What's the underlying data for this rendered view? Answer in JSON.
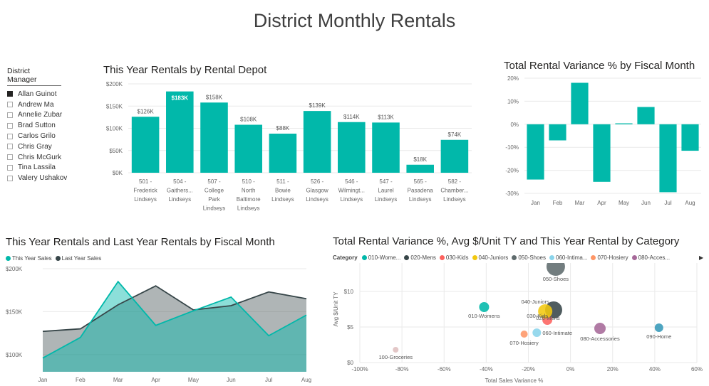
{
  "report": {
    "title": "District Monthly Rentals"
  },
  "slicer": {
    "title": "District Manager",
    "items": [
      {
        "label": "Allan Guinot",
        "checked": true
      },
      {
        "label": "Andrew Ma",
        "checked": false
      },
      {
        "label": "Annelie Zubar",
        "checked": false
      },
      {
        "label": "Brad Sutton",
        "checked": false
      },
      {
        "label": "Carlos Grilo",
        "checked": false
      },
      {
        "label": "Chris Gray",
        "checked": false
      },
      {
        "label": "Chris McGurk",
        "checked": false
      },
      {
        "label": "Tina Lassila",
        "checked": false
      },
      {
        "label": "Valery Ushakov",
        "checked": false
      }
    ]
  },
  "chart_data": [
    {
      "id": "depot",
      "type": "bar",
      "title": "This Year Rentals by Rental Depot",
      "categories": [
        [
          "501 -",
          "Frederick",
          "Lindseys"
        ],
        [
          "504 -",
          "Gaithers...",
          "Lindseys"
        ],
        [
          "507 -",
          "College",
          "Park",
          "Lindseys"
        ],
        [
          "510 -",
          "North",
          "Baltimore",
          "Lindseys"
        ],
        [
          "511 -",
          "Bowie",
          "Lindseys"
        ],
        [
          "526 -",
          "Glasgow",
          "Lindseys"
        ],
        [
          "546 -",
          "Wilmingt...",
          "Lindseys"
        ],
        [
          "547 -",
          "Laurel",
          "Lindseys"
        ],
        [
          "565 -",
          "Pasadena",
          "Lindseys"
        ],
        [
          "582 -",
          "Chamber...",
          "Lindseys"
        ]
      ],
      "values": [
        126,
        183,
        158,
        108,
        88,
        139,
        114,
        113,
        18,
        74
      ],
      "data_labels": [
        "$126K",
        "$183K",
        "$158K",
        "$108K",
        "$88K",
        "$139K",
        "$114K",
        "$113K",
        "$18K",
        "$74K"
      ],
      "highlight_index": 1,
      "ylim": [
        0,
        200
      ],
      "yticks": [
        0,
        50,
        100,
        150,
        200
      ],
      "ytick_labels": [
        "$0K",
        "$50K",
        "$100K",
        "$150K",
        "$200K"
      ],
      "grid": true,
      "color": "#01B8AA"
    },
    {
      "id": "variance",
      "type": "bar",
      "title": "Total Rental Variance % by Fiscal Month",
      "categories": [
        "Jan",
        "Feb",
        "Mar",
        "Apr",
        "May",
        "Jun",
        "Jul",
        "Aug"
      ],
      "values": [
        -24,
        -7,
        18,
        -25,
        0.4,
        7.5,
        -29.5,
        -11.5
      ],
      "ylim": [
        -30,
        20
      ],
      "yticks": [
        -30,
        -20,
        -10,
        0,
        10,
        20
      ],
      "ytick_labels": [
        "-30%",
        "-20%",
        "-10%",
        "0%",
        "10%",
        "20%"
      ],
      "grid": true,
      "color": "#01B8AA"
    },
    {
      "id": "monthly",
      "type": "area",
      "title": "This Year Rentals and Last Year Rentals by Fiscal Month",
      "categories": [
        "Jan",
        "Feb",
        "Mar",
        "Apr",
        "May",
        "Jun",
        "Jul",
        "Aug"
      ],
      "series": [
        {
          "name": "This Year Sales",
          "values": [
            96,
            120,
            185,
            134,
            151,
            167,
            122,
            146
          ],
          "color": "#01B8AA"
        },
        {
          "name": "Last Year Sales",
          "values": [
            127,
            130,
            158,
            180,
            152,
            157,
            173,
            165
          ],
          "color": "#374649"
        }
      ],
      "ylim": [
        80,
        200
      ],
      "yticks": [
        100,
        150,
        200
      ],
      "ytick_labels": [
        "$100K",
        "$150K",
        "$200K"
      ],
      "legend": "top-left",
      "grid": true
    },
    {
      "id": "category",
      "type": "scatter",
      "title": "Total Rental Variance %, Avg $/Unit TY and This Year Rental by Category",
      "xlabel": "Total Sales Variance %",
      "ylabel": "Avg $/Unit TY",
      "legend_title": "Category",
      "legend": "top",
      "xlim": [
        -100,
        60
      ],
      "xticks": [
        -100,
        -80,
        -60,
        -40,
        -20,
        0,
        20,
        40,
        60
      ],
      "xtick_labels": [
        "-100%",
        "-80%",
        "-60%",
        "-40%",
        "-20%",
        "0%",
        "20%",
        "40%",
        "60%"
      ],
      "ylim": [
        0,
        14
      ],
      "yticks": [
        0,
        5,
        10
      ],
      "ytick_labels": [
        "$0",
        "$5",
        "$10"
      ],
      "grid": true,
      "points": [
        {
          "name": "010-Womens",
          "legend_label": "010-Wome...",
          "label": "010-Womens",
          "x": -41,
          "y": 7.8,
          "size": 7,
          "color": "#01B8AA"
        },
        {
          "name": "020-Mens",
          "legend_label": "020-Mens",
          "label": "020-Mens",
          "x": -8,
          "y": 7.4,
          "size": 12,
          "color": "#374649"
        },
        {
          "name": "030-Kids",
          "legend_label": "030-Kids",
          "label": "030-Kids",
          "x": -11,
          "y": 6.0,
          "size": 7,
          "color": "#FD625E"
        },
        {
          "name": "040-Juniors",
          "legend_label": "040-Juniors",
          "label": "040-Juniors",
          "x": -12,
          "y": 7.2,
          "size": 10,
          "color": "#F2C80F"
        },
        {
          "name": "050-Shoes",
          "legend_label": "050-Shoes",
          "label": "050-Shoes",
          "x": -7,
          "y": 13.5,
          "size": 13,
          "color": "#5F6B6D"
        },
        {
          "name": "060-Intimate",
          "legend_label": "060-Intima...",
          "label": "060-Intimate",
          "x": -16,
          "y": 4.2,
          "size": 6,
          "color": "#8AD4EB"
        },
        {
          "name": "070-Hosiery",
          "legend_label": "070-Hosiery",
          "label": "070-Hosiery",
          "x": -22,
          "y": 4.0,
          "size": 5,
          "color": "#FE9666"
        },
        {
          "name": "080-Accessories",
          "legend_label": "080-Acces...",
          "label": "080-Accessories",
          "x": 14,
          "y": 4.8,
          "size": 8,
          "color": "#A66999"
        },
        {
          "name": "090-Home",
          "label": "090-Home",
          "x": 42,
          "y": 4.9,
          "size": 6,
          "color": "#3599B8"
        },
        {
          "name": "100-Groceries",
          "label": "100-Groceries",
          "x": -83,
          "y": 1.8,
          "size": 4,
          "color": "#DFBFBF"
        }
      ]
    }
  ]
}
